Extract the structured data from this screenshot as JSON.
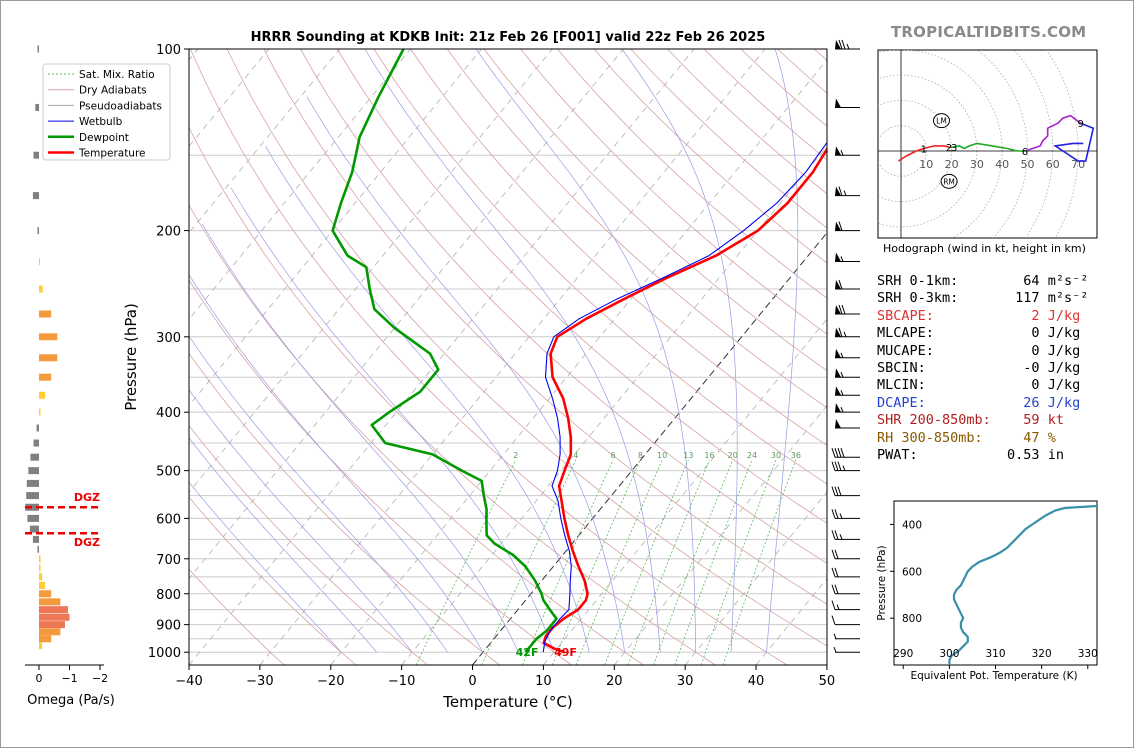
{
  "figure": {
    "title": "HRRR Sounding at KDKB Init: 21z Feb 26 [F001] valid 22z Feb 26 2025",
    "brand": "TROPICALTIDBITS.COM"
  },
  "chart_data": [
    {
      "type": "line",
      "name": "skewt",
      "title": "HRRR Sounding at KDKB Init: 21z Feb 26 [F001] valid 22z Feb 26 2025",
      "xlabel": "Temperature (°C)",
      "ylabel": "Pressure (hPa)",
      "xlim": [
        -40,
        50
      ],
      "ylim": [
        1050,
        100
      ],
      "y_scale": "log",
      "xticks": [
        -40,
        -30,
        -20,
        -10,
        0,
        10,
        20,
        30,
        40,
        50
      ],
      "xtick_labels": [
        "−40",
        "−30",
        "−20",
        "−10",
        "0",
        "10",
        "20",
        "30",
        "40",
        "50"
      ],
      "yticks": [
        100,
        200,
        300,
        400,
        500,
        600,
        700,
        800,
        900,
        1000
      ],
      "legend": {
        "position": "top-left",
        "entries": [
          "Sat. Mix. Ratio",
          "Dry Adiabats",
          "Pseudoadiabats",
          "Wetbulb",
          "Dewpoint",
          "Temperature"
        ]
      },
      "mixing_ratio_labels": [
        "2",
        "4",
        "6",
        "8",
        "10",
        "13",
        "16",
        "20",
        "24",
        "30",
        "36"
      ],
      "mixing_ratio_values": [
        2,
        4,
        6,
        8,
        10,
        13,
        16,
        20,
        24,
        30,
        36
      ],
      "surface_labels": {
        "dewpoint": "42F",
        "temperature": "49F"
      },
      "colors": {
        "temperature": "#ff0000",
        "dewpoint": "#009900",
        "wetbulb": "#0000ee",
        "dry": "#d6a3a3",
        "moist": "#9b9be6",
        "mix": "#5cb85c"
      },
      "series": [
        {
          "name": "Temperature",
          "points": [
            [
              1000,
              11.5
            ],
            [
              985,
              9.5
            ],
            [
              965,
              7.5
            ],
            [
              940,
              7
            ],
            [
              910,
              7
            ],
            [
              880,
              7.5
            ],
            [
              850,
              8.5
            ],
            [
              820,
              8.5
            ],
            [
              800,
              8
            ],
            [
              760,
              6
            ],
            [
              720,
              3.5
            ],
            [
              680,
              1
            ],
            [
              640,
              -1.5
            ],
            [
              600,
              -4
            ],
            [
              560,
              -6.5
            ],
            [
              530,
              -8.5
            ],
            [
              500,
              -9.5
            ],
            [
              470,
              -10.5
            ],
            [
              440,
              -12.5
            ],
            [
              410,
              -15
            ],
            [
              380,
              -18
            ],
            [
              350,
              -22
            ],
            [
              320,
              -25
            ],
            [
              300,
              -26
            ],
            [
              280,
              -24
            ],
            [
              260,
              -21
            ],
            [
              240,
              -17.5
            ],
            [
              220,
              -13
            ],
            [
              200,
              -10
            ],
            [
              180,
              -9
            ],
            [
              160,
              -9
            ],
            [
              140,
              -10
            ],
            [
              120,
              -11.5
            ],
            [
              100,
              -13
            ]
          ]
        },
        {
          "name": "Wetbulb",
          "points": [
            [
              1000,
              8.5
            ],
            [
              960,
              7.5
            ],
            [
              920,
              7
            ],
            [
              880,
              7
            ],
            [
              850,
              7.2
            ],
            [
              800,
              5.5
            ],
            [
              760,
              4
            ],
            [
              720,
              2.5
            ],
            [
              680,
              0.5
            ],
            [
              640,
              -2
            ],
            [
              600,
              -4.5
            ],
            [
              560,
              -7
            ],
            [
              530,
              -9.5
            ],
            [
              500,
              -10.5
            ],
            [
              470,
              -12
            ],
            [
              440,
              -14
            ],
            [
              410,
              -16.5
            ],
            [
              380,
              -19.5
            ],
            [
              350,
              -23
            ],
            [
              320,
              -25.5
            ],
            [
              300,
              -26.5
            ],
            [
              280,
              -25
            ],
            [
              260,
              -22
            ],
            [
              240,
              -18
            ],
            [
              220,
              -14
            ],
            [
              200,
              -12
            ],
            [
              180,
              -10.5
            ],
            [
              160,
              -10
            ],
            [
              140,
              -10.5
            ],
            [
              120,
              -12
            ],
            [
              100,
              -14
            ]
          ]
        },
        {
          "name": "Dewpoint",
          "points": [
            [
              1000,
              6
            ],
            [
              970,
              6
            ],
            [
              950,
              6
            ],
            [
              920,
              6.5
            ],
            [
              880,
              6.5
            ],
            [
              850,
              4.5
            ],
            [
              820,
              2.5
            ],
            [
              800,
              1.5
            ],
            [
              760,
              -1
            ],
            [
              720,
              -4
            ],
            [
              690,
              -7
            ],
            [
              660,
              -11
            ],
            [
              640,
              -13
            ],
            [
              620,
              -14
            ],
            [
              600,
              -15
            ],
            [
              580,
              -16
            ],
            [
              550,
              -18
            ],
            [
              520,
              -20
            ],
            [
              500,
              -24
            ],
            [
              470,
              -30
            ],
            [
              450,
              -38
            ],
            [
              420,
              -42
            ],
            [
              400,
              -41
            ],
            [
              370,
              -39
            ],
            [
              340,
              -39
            ],
            [
              320,
              -42
            ],
            [
              290,
              -50
            ],
            [
              270,
              -55
            ],
            [
              250,
              -58
            ],
            [
              230,
              -61
            ],
            [
              220,
              -65
            ],
            [
              200,
              -70
            ],
            [
              180,
              -72
            ],
            [
              160,
              -74
            ],
            [
              140,
              -77
            ],
            [
              120,
              -79
            ],
            [
              100,
              -81
            ]
          ]
        }
      ]
    },
    {
      "type": "bar",
      "name": "omega",
      "xlabel": "Omega (Pa/s)",
      "xlim": [
        0.2,
        -2.2
      ],
      "xticks": [
        0,
        -1,
        -2
      ],
      "xtick_labels": [
        "0",
        "−1",
        "−2"
      ],
      "dgz_label": "DGZ",
      "dgz": [
        575,
        635
      ],
      "bars": [
        [
          100,
          0.05
        ],
        [
          125,
          0.12
        ],
        [
          150,
          0.18
        ],
        [
          175,
          0.2
        ],
        [
          200,
          0.05
        ],
        [
          225,
          -0.03
        ],
        [
          250,
          -0.12
        ],
        [
          275,
          -0.4
        ],
        [
          300,
          -0.6
        ],
        [
          325,
          -0.6
        ],
        [
          350,
          -0.4
        ],
        [
          375,
          -0.2
        ],
        [
          400,
          -0.05
        ],
        [
          425,
          0.08
        ],
        [
          450,
          0.18
        ],
        [
          475,
          0.28
        ],
        [
          500,
          0.35
        ],
        [
          525,
          0.4
        ],
        [
          550,
          0.42
        ],
        [
          575,
          0.45
        ],
        [
          600,
          0.38
        ],
        [
          625,
          0.3
        ],
        [
          650,
          0.2
        ],
        [
          675,
          0.05
        ],
        [
          700,
          -0.05
        ],
        [
          725,
          -0.05
        ],
        [
          750,
          -0.1
        ],
        [
          775,
          -0.2
        ],
        [
          800,
          -0.4
        ],
        [
          825,
          -0.7
        ],
        [
          850,
          -0.95
        ],
        [
          875,
          -1.0
        ],
        [
          900,
          -0.85
        ],
        [
          925,
          -0.7
        ],
        [
          950,
          -0.4
        ],
        [
          975,
          -0.1
        ]
      ]
    },
    {
      "type": "line",
      "name": "theta_e",
      "xlabel": "Equivalent Pot. Temperature (K)",
      "ylabel": "Pressure (hPa)",
      "xlim": [
        288,
        332
      ],
      "ylim": [
        1000,
        300
      ],
      "xticks": [
        290,
        300,
        310,
        320,
        330
      ],
      "yticks": [
        400,
        600,
        800
      ],
      "points": [
        [
          1000,
          300
        ],
        [
          980,
          300
        ],
        [
          960,
          300.5
        ],
        [
          940,
          302
        ],
        [
          920,
          303
        ],
        [
          900,
          304
        ],
        [
          880,
          304
        ],
        [
          860,
          303
        ],
        [
          840,
          302.5
        ],
        [
          820,
          302.5
        ],
        [
          800,
          303
        ],
        [
          780,
          302.5
        ],
        [
          760,
          302
        ],
        [
          740,
          301.5
        ],
        [
          720,
          301
        ],
        [
          700,
          301
        ],
        [
          680,
          301.5
        ],
        [
          660,
          302.5
        ],
        [
          640,
          303
        ],
        [
          620,
          303.5
        ],
        [
          600,
          304
        ],
        [
          580,
          305
        ],
        [
          560,
          306.5
        ],
        [
          540,
          309
        ],
        [
          520,
          311
        ],
        [
          500,
          312.5
        ],
        [
          480,
          313.5
        ],
        [
          460,
          314.5
        ],
        [
          440,
          315.5
        ],
        [
          420,
          316.5
        ],
        [
          400,
          318
        ],
        [
          380,
          319.5
        ],
        [
          360,
          321
        ],
        [
          340,
          323
        ],
        [
          330,
          325
        ],
        [
          320,
          333
        ]
      ]
    },
    {
      "type": "line",
      "name": "hodograph",
      "caption": "Hodograph (wind in kt, height in km)",
      "ring_labels": [
        "10",
        "20",
        "30",
        "40",
        "50",
        "60",
        "70"
      ],
      "ring_values": [
        10,
        20,
        30,
        40,
        50,
        60,
        70
      ],
      "markers": {
        "LM": [
          16,
          12
        ],
        "RM": [
          19,
          -12
        ]
      },
      "height_labels": [
        {
          "text": "1",
          "u": 9,
          "v": 1
        },
        {
          "text": "2",
          "u": 19,
          "v": 1.5
        },
        {
          "text": "3",
          "u": 21,
          "v": 1.5
        },
        {
          "text": "6",
          "u": 49,
          "v": 0
        },
        {
          "text": "9",
          "u": 71,
          "v": 11
        }
      ],
      "segments": [
        {
          "color": "#ee2222",
          "points": [
            [
              -1,
              -4
            ],
            [
              2,
              -2
            ],
            [
              6,
              0
            ],
            [
              9,
              1
            ],
            [
              13,
              2
            ],
            [
              17,
              2
            ],
            [
              19,
              1.5
            ]
          ]
        },
        {
          "color": "#22aa22",
          "points": [
            [
              19,
              1.5
            ],
            [
              21,
              1.5
            ],
            [
              23,
              2
            ],
            [
              25,
              1
            ],
            [
              27,
              2
            ],
            [
              30,
              3
            ],
            [
              36,
              2
            ],
            [
              42,
              1
            ],
            [
              46,
              0
            ],
            [
              49,
              0
            ]
          ]
        },
        {
          "color": "#aa22cc",
          "points": [
            [
              49,
              0
            ],
            [
              52,
              1
            ],
            [
              55,
              2
            ],
            [
              56,
              4
            ],
            [
              58,
              6
            ],
            [
              58,
              9
            ],
            [
              62,
              11
            ],
            [
              64,
              13
            ],
            [
              67,
              14
            ],
            [
              71,
              11
            ]
          ]
        },
        {
          "color": "#2222dd",
          "points": [
            [
              71,
              11
            ],
            [
              76,
              9
            ],
            [
              73,
              -4
            ],
            [
              70,
              -4
            ],
            [
              61,
              2
            ],
            [
              68,
              3
            ],
            [
              72,
              3
            ]
          ]
        }
      ]
    }
  ],
  "indices": [
    {
      "label": "SRH 0-1km:",
      "value": "64",
      "unit": "m²s⁻²",
      "color": "#000000"
    },
    {
      "label": "SRH 0-3km:",
      "value": "117",
      "unit": "m²s⁻²",
      "color": "#000000"
    },
    {
      "label": "SBCAPE:",
      "value": "2",
      "unit": "J/kg",
      "color": "#dd3333"
    },
    {
      "label": "MLCAPE:",
      "value": "0",
      "unit": "J/kg",
      "color": "#000000"
    },
    {
      "label": "MUCAPE:",
      "value": "0",
      "unit": "J/kg",
      "color": "#000000"
    },
    {
      "label": "SBCIN:",
      "value": "-0",
      "unit": "J/kg",
      "color": "#000000"
    },
    {
      "label": "MLCIN:",
      "value": "0",
      "unit": "J/kg",
      "color": "#000000"
    },
    {
      "label": "DCAPE:",
      "value": "26",
      "unit": "J/kg",
      "color": "#2244cc"
    },
    {
      "label": "SHR 200-850mb:",
      "value": "59",
      "unit": "kt",
      "color": "#b02020"
    },
    {
      "label": "RH 300-850mb:",
      "value": "47",
      "unit": "%",
      "color": "#8b5a00"
    },
    {
      "label": "PWAT:",
      "value": "0.53",
      "unit": "in",
      "color": "#000000"
    }
  ],
  "wind_barbs": [
    {
      "p": 100,
      "spd": 75
    },
    {
      "p": 125,
      "spd": 50
    },
    {
      "p": 150,
      "spd": 55
    },
    {
      "p": 175,
      "spd": 65
    },
    {
      "p": 200,
      "spd": 60
    },
    {
      "p": 225,
      "spd": 55
    },
    {
      "p": 250,
      "spd": 60
    },
    {
      "p": 275,
      "spd": 70
    },
    {
      "p": 300,
      "spd": 65
    },
    {
      "p": 325,
      "spd": 55
    },
    {
      "p": 350,
      "spd": 55
    },
    {
      "p": 375,
      "spd": 55
    },
    {
      "p": 400,
      "spd": 55
    },
    {
      "p": 425,
      "spd": 50
    },
    {
      "p": 475,
      "spd": 40
    },
    {
      "p": 500,
      "spd": 35
    },
    {
      "p": 550,
      "spd": 30
    },
    {
      "p": 600,
      "spd": 25
    },
    {
      "p": 650,
      "spd": 25
    },
    {
      "p": 700,
      "spd": 20
    },
    {
      "p": 750,
      "spd": 20
    },
    {
      "p": 800,
      "spd": 20
    },
    {
      "p": 850,
      "spd": 15
    },
    {
      "p": 900,
      "spd": 10
    },
    {
      "p": 950,
      "spd": 5
    },
    {
      "p": 1000,
      "spd": 5
    }
  ]
}
